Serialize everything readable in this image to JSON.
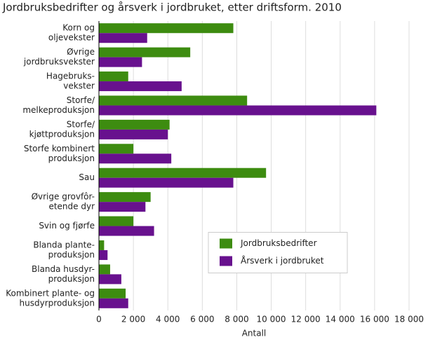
{
  "chart_data": {
    "type": "hbar",
    "title": "Jordbruksbedrifter og årsverk i jordbruket, etter driftsform. 2010",
    "x_label": "Antall",
    "categories": [
      [
        "Korn og",
        "oljevekster"
      ],
      [
        "Øvrige",
        "jordbruksvekster"
      ],
      [
        "Hagebruks-",
        "vekster"
      ],
      [
        "Storfe/",
        "melkeproduksjon"
      ],
      [
        "Storfe/",
        "kjøttproduksjon"
      ],
      [
        "Storfe kombinert",
        "produksjon"
      ],
      [
        "Sau"
      ],
      [
        "Øvrige grovfôr-",
        "etende dyr"
      ],
      [
        "Svin og fjørfe"
      ],
      [
        "Blanda plante-",
        "produksjon"
      ],
      [
        "Blanda husdyr-",
        "produksjon"
      ],
      [
        "Kombinert plante- og",
        "husdyrproduksjon"
      ]
    ],
    "series": [
      {
        "name": "Jordbruksbedrifter",
        "color": "#3d8c10",
        "values": [
          7800,
          5300,
          1700,
          8600,
          4100,
          2000,
          9700,
          3000,
          2000,
          300,
          650,
          1550
        ]
      },
      {
        "name": "Årsverk i jordbruket",
        "color": "#68118e",
        "values": [
          2800,
          2500,
          4800,
          16100,
          4000,
          4200,
          7800,
          2700,
          3200,
          500,
          1300,
          1700
        ]
      }
    ],
    "xlim": [
      0,
      18000
    ],
    "xticks": [
      0,
      {
        "value": 2000,
        "label": "2 000"
      },
      {
        "value": 4000,
        "label": "4 000"
      },
      {
        "value": 6000,
        "label": "6 000"
      },
      {
        "value": 8000,
        "label": "8 000"
      },
      {
        "value": 10000,
        "label": "10 000"
      },
      {
        "value": 12000,
        "label": "12 000"
      },
      {
        "value": 14000,
        "label": "14 000"
      },
      {
        "value": 16000,
        "label": "16 000"
      },
      {
        "value": 18000,
        "label": "18 000"
      }
    ],
    "grid": true,
    "legend_position": "center right"
  }
}
